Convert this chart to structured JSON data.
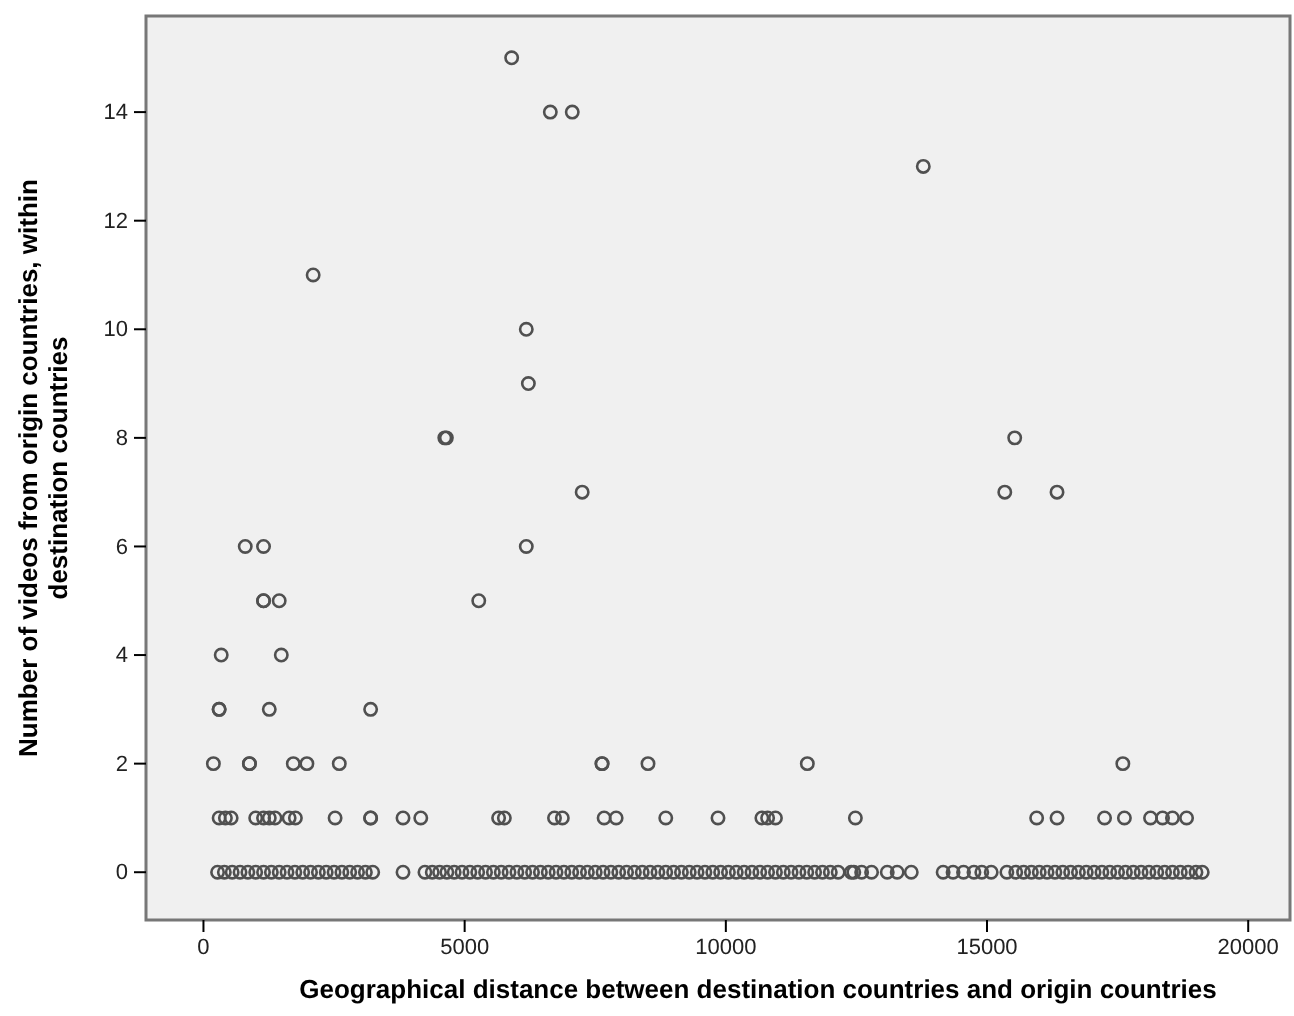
{
  "chart_data": {
    "type": "scatter",
    "xlabel": "Geographical distance between destination countries and origin countries",
    "ylabel": "Number of videos from origin countries, within destination countries",
    "xlim": [
      -1100,
      20800
    ],
    "ylim": [
      -0.88,
      15.77
    ],
    "xticks": [
      0,
      5000,
      10000,
      15000,
      20000
    ],
    "yticks": [
      0,
      2,
      4,
      6,
      8,
      10,
      12,
      14
    ],
    "grid": false,
    "marker": "circle",
    "series": [
      {
        "color": "#505050",
        "x": [
          5900,
          6640,
          7060,
          13780,
          2100,
          6180,
          6220,
          4620,
          4650,
          15530,
          7250,
          15340,
          16340,
          800,
          1150,
          6180,
          1150,
          1150,
          1450,
          5270,
          340,
          1490,
          300,
          300,
          1260,
          3200,
          190,
          880,
          880,
          1720,
          1980,
          2600,
          7630,
          7630,
          8510,
          11560,
          17600,
          300,
          420,
          530,
          1000,
          1150,
          1260,
          1370,
          1640,
          1760,
          2520,
          3200,
          3200,
          3820,
          4160,
          5650,
          5760,
          6720,
          6870,
          7670,
          7900,
          8850,
          9850,
          10690,
          10800,
          10950,
          12480,
          15950,
          16340,
          17250,
          17630,
          18130,
          18360,
          18550,
          18820,
          270,
          400,
          550,
          700,
          850,
          1000,
          1150,
          1300,
          1450,
          1600,
          1750,
          1900,
          2050,
          2200,
          2350,
          2500,
          2650,
          2800,
          2950,
          3100,
          3240,
          3820,
          4240,
          4380,
          4520,
          4660,
          4800,
          4950,
          5100,
          5250,
          5400,
          5550,
          5700,
          5850,
          6000,
          6150,
          6300,
          6450,
          6600,
          6750,
          6900,
          7050,
          7200,
          7350,
          7500,
          7650,
          7800,
          7950,
          8100,
          8250,
          8400,
          8550,
          8700,
          8850,
          9000,
          9150,
          9300,
          9450,
          9600,
          9750,
          9900,
          10050,
          10200,
          10350,
          10500,
          10650,
          10800,
          10950,
          11100,
          11250,
          11400,
          11550,
          11700,
          11850,
          12000,
          12150,
          12400,
          12450,
          12600,
          12790,
          13090,
          13280,
          13550,
          14160,
          14350,
          14550,
          14750,
          14900,
          15080,
          15380,
          15550,
          15700,
          15850,
          16000,
          16150,
          16300,
          16450,
          16600,
          16750,
          16900,
          17050,
          17200,
          17350,
          17500,
          17650,
          17800,
          17950,
          18100,
          18250,
          18400,
          18550,
          18700,
          18850,
          19000,
          19120
        ],
        "values": [
          15,
          14,
          14,
          13,
          11,
          10,
          9,
          8,
          8,
          8,
          7,
          7,
          7,
          6,
          6,
          6,
          5,
          5,
          5,
          5,
          4,
          4,
          3,
          3,
          3,
          3,
          2,
          2,
          2,
          2,
          2,
          2,
          2,
          2,
          2,
          2,
          2,
          1,
          1,
          1,
          1,
          1,
          1,
          1,
          1,
          1,
          1,
          1,
          1,
          1,
          1,
          1,
          1,
          1,
          1,
          1,
          1,
          1,
          1,
          1,
          1,
          1,
          1,
          1,
          1,
          1,
          1,
          1,
          1,
          1,
          1,
          0,
          0,
          0,
          0,
          0,
          0,
          0,
          0,
          0,
          0,
          0,
          0,
          0,
          0,
          0,
          0,
          0,
          0,
          0,
          0,
          0,
          0,
          0,
          0,
          0,
          0,
          0,
          0,
          0,
          0,
          0,
          0,
          0,
          0,
          0,
          0,
          0,
          0,
          0,
          0,
          0,
          0,
          0,
          0,
          0,
          0,
          0,
          0,
          0,
          0,
          0,
          0,
          0,
          0,
          0,
          0,
          0,
          0,
          0,
          0,
          0,
          0,
          0,
          0,
          0,
          0,
          0,
          0,
          0,
          0,
          0,
          0,
          0,
          0,
          0,
          0,
          0,
          0,
          0,
          0,
          0,
          0,
          0,
          0,
          0,
          0,
          0,
          0,
          0,
          0,
          0,
          0,
          0,
          0,
          0,
          0,
          0,
          0,
          0,
          0,
          0,
          0,
          0,
          0,
          0,
          0,
          0,
          0,
          0,
          0,
          0,
          0,
          0,
          0,
          0
        ]
      }
    ]
  }
}
